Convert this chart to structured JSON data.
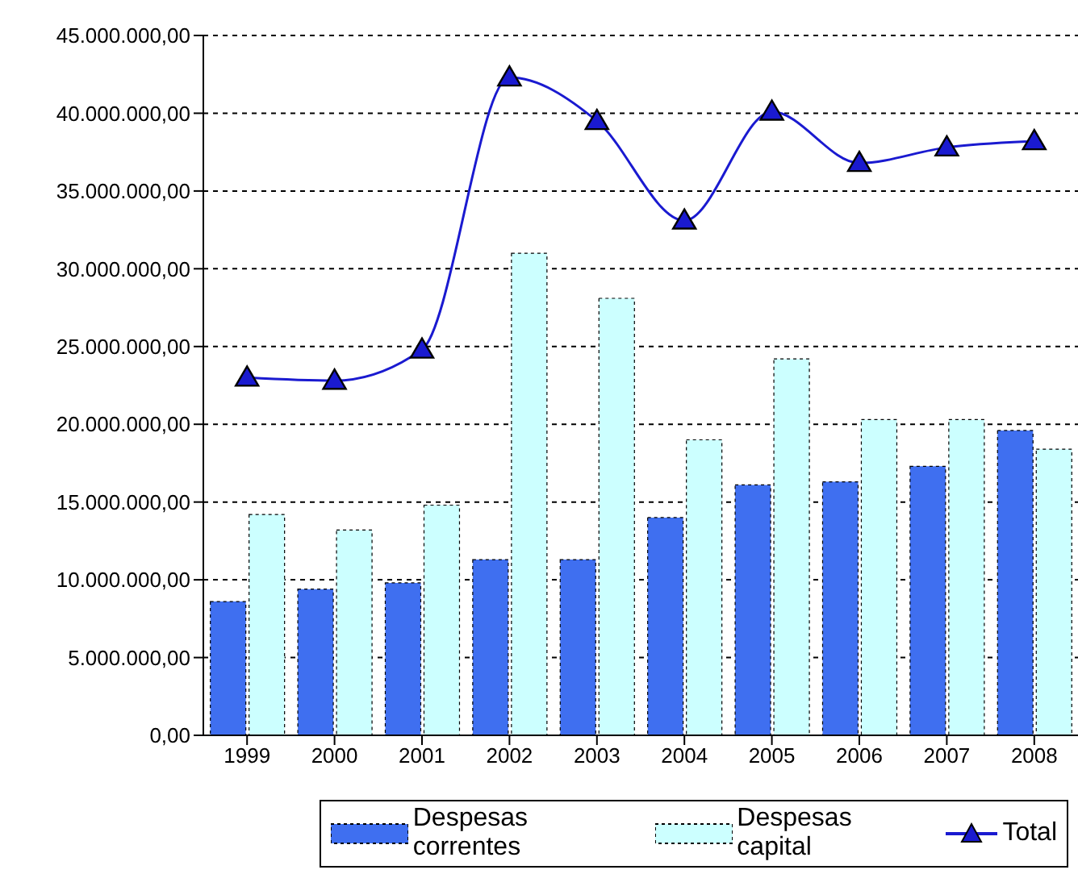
{
  "chart_data": {
    "type": "bar",
    "categories": [
      "1999",
      "2000",
      "2001",
      "2002",
      "2003",
      "2004",
      "2005",
      "2006",
      "2007",
      "2008"
    ],
    "series": [
      {
        "name": "Despesas correntes",
        "color": "#3f6ff0",
        "values": [
          8600000.0,
          9400000.0,
          9800000.0,
          11300000.0,
          11300000.0,
          14000000.0,
          16100000.0,
          16300000.0,
          17300000.0,
          19600000.0
        ]
      },
      {
        "name": "Despesas capital",
        "color": "#ccffff",
        "values": [
          14200000.0,
          13200000.0,
          14800000.0,
          31000000.0,
          28100000.0,
          19000000.0,
          24200000.0,
          20300000.0,
          20300000.0,
          18400000.0
        ]
      },
      {
        "name": "Total",
        "type": "line",
        "color": "#1a1ad0",
        "marker": "triangle",
        "values": [
          23000000.0,
          22800000.0,
          24800000.0,
          42300000.0,
          39500000.0,
          33100000.0,
          40100000.0,
          36800000.0,
          37800000.0,
          38200000.0
        ]
      }
    ],
    "ylim": [
      0,
      45000000
    ],
    "yticks": [
      {
        "value": 0,
        "label": "0,00"
      },
      {
        "value": 5000000,
        "label": "5.000.000,00"
      },
      {
        "value": 10000000,
        "label": "10.000.000,00"
      },
      {
        "value": 15000000,
        "label": "15.000.000,00"
      },
      {
        "value": 20000000,
        "label": "20.000.000,00"
      },
      {
        "value": 25000000,
        "label": "25.000.000,00"
      },
      {
        "value": 30000000,
        "label": "30.000.000,00"
      },
      {
        "value": 35000000,
        "label": "35.000.000,00"
      },
      {
        "value": 40000000,
        "label": "40.000.000,00"
      },
      {
        "value": 45000000,
        "label": "45.000.000,00"
      }
    ],
    "grid": "y",
    "legend": "bottom"
  }
}
